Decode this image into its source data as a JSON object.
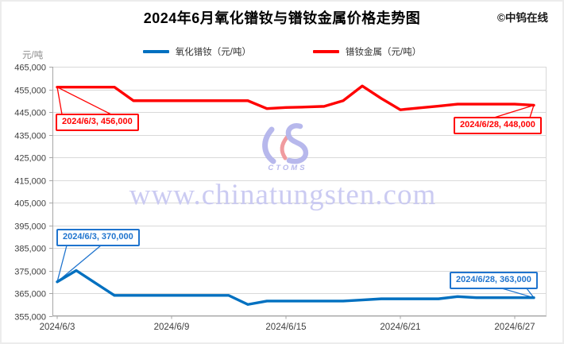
{
  "header": {
    "title": "2024年6月氧化镨钕与镨钕金属价格走势图",
    "copyright": "©中钨在线"
  },
  "legend": [
    {
      "label": "氧化镨钕（元/吨）",
      "color": "#0070C0"
    },
    {
      "label": "镨钕金属（元/吨）",
      "color": "#FF0000"
    }
  ],
  "watermark": {
    "logo_text": "CTOMS",
    "url": "www.chinatungsten.com"
  },
  "chart_data": {
    "type": "line",
    "title": "2024年6月氧化镨钕与镨钕金属价格走势图",
    "xlabel": "",
    "ylabel": "元/吨",
    "ylim": [
      355000,
      465000
    ],
    "ytick_step": 10000,
    "yticks": [
      465000,
      455000,
      445000,
      435000,
      425000,
      415000,
      405000,
      395000,
      385000,
      375000,
      365000,
      355000
    ],
    "grid": true,
    "legend_position": "top",
    "x": [
      "2024/6/3",
      "2024/6/4",
      "2024/6/5",
      "2024/6/6",
      "2024/6/7",
      "2024/6/8",
      "2024/6/9",
      "2024/6/10",
      "2024/6/11",
      "2024/6/12",
      "2024/6/13",
      "2024/6/14",
      "2024/6/15",
      "2024/6/16",
      "2024/6/17",
      "2024/6/18",
      "2024/6/19",
      "2024/6/20",
      "2024/6/21",
      "2024/6/22",
      "2024/6/23",
      "2024/6/24",
      "2024/6/25",
      "2024/6/26",
      "2024/6/27",
      "2024/6/28"
    ],
    "xtick_labels": [
      "2024/6/3",
      "2024/6/9",
      "2024/6/15",
      "2024/6/21",
      "2024/6/27"
    ],
    "series": [
      {
        "name": "氧化镨钕（元/吨）",
        "color": "#0070C0",
        "values": [
          370000,
          375000,
          369500,
          364000,
          364000,
          364000,
          364000,
          364000,
          364000,
          364000,
          360000,
          361500,
          361500,
          361500,
          361500,
          361500,
          362000,
          362500,
          362500,
          362500,
          362500,
          363500,
          363000,
          363000,
          363000,
          363000
        ]
      },
      {
        "name": "镨钕金属（元/吨）",
        "color": "#FF0000",
        "values": [
          456000,
          456000,
          456000,
          456000,
          450000,
          450000,
          450000,
          450000,
          450000,
          450000,
          450000,
          446500,
          447000,
          447200,
          447500,
          450000,
          456500,
          451000,
          446000,
          446800,
          447600,
          448500,
          448500,
          448500,
          448500,
          448000
        ]
      }
    ],
    "annotations": [
      {
        "id": "metal-start",
        "series": "镨钕金属（元/吨）",
        "date": "2024/6/3",
        "value": 456000,
        "label": "2024/6/3, 456,000",
        "color": "#FF0000"
      },
      {
        "id": "metal-end",
        "series": "镨钕金属（元/吨）",
        "date": "2024/6/28",
        "value": 448000,
        "label": "2024/6/28, 448,000",
        "color": "#FF0000"
      },
      {
        "id": "oxide-start",
        "series": "氧化镨钕（元/吨）",
        "date": "2024/6/3",
        "value": 370000,
        "label": "2024/6/3, 370,000",
        "color": "#1F74CE"
      },
      {
        "id": "oxide-end",
        "series": "氧化镨钕（元/吨）",
        "date": "2024/6/28",
        "value": 363000,
        "label": "2024/6/28, 363,000",
        "color": "#1F74CE"
      }
    ]
  }
}
